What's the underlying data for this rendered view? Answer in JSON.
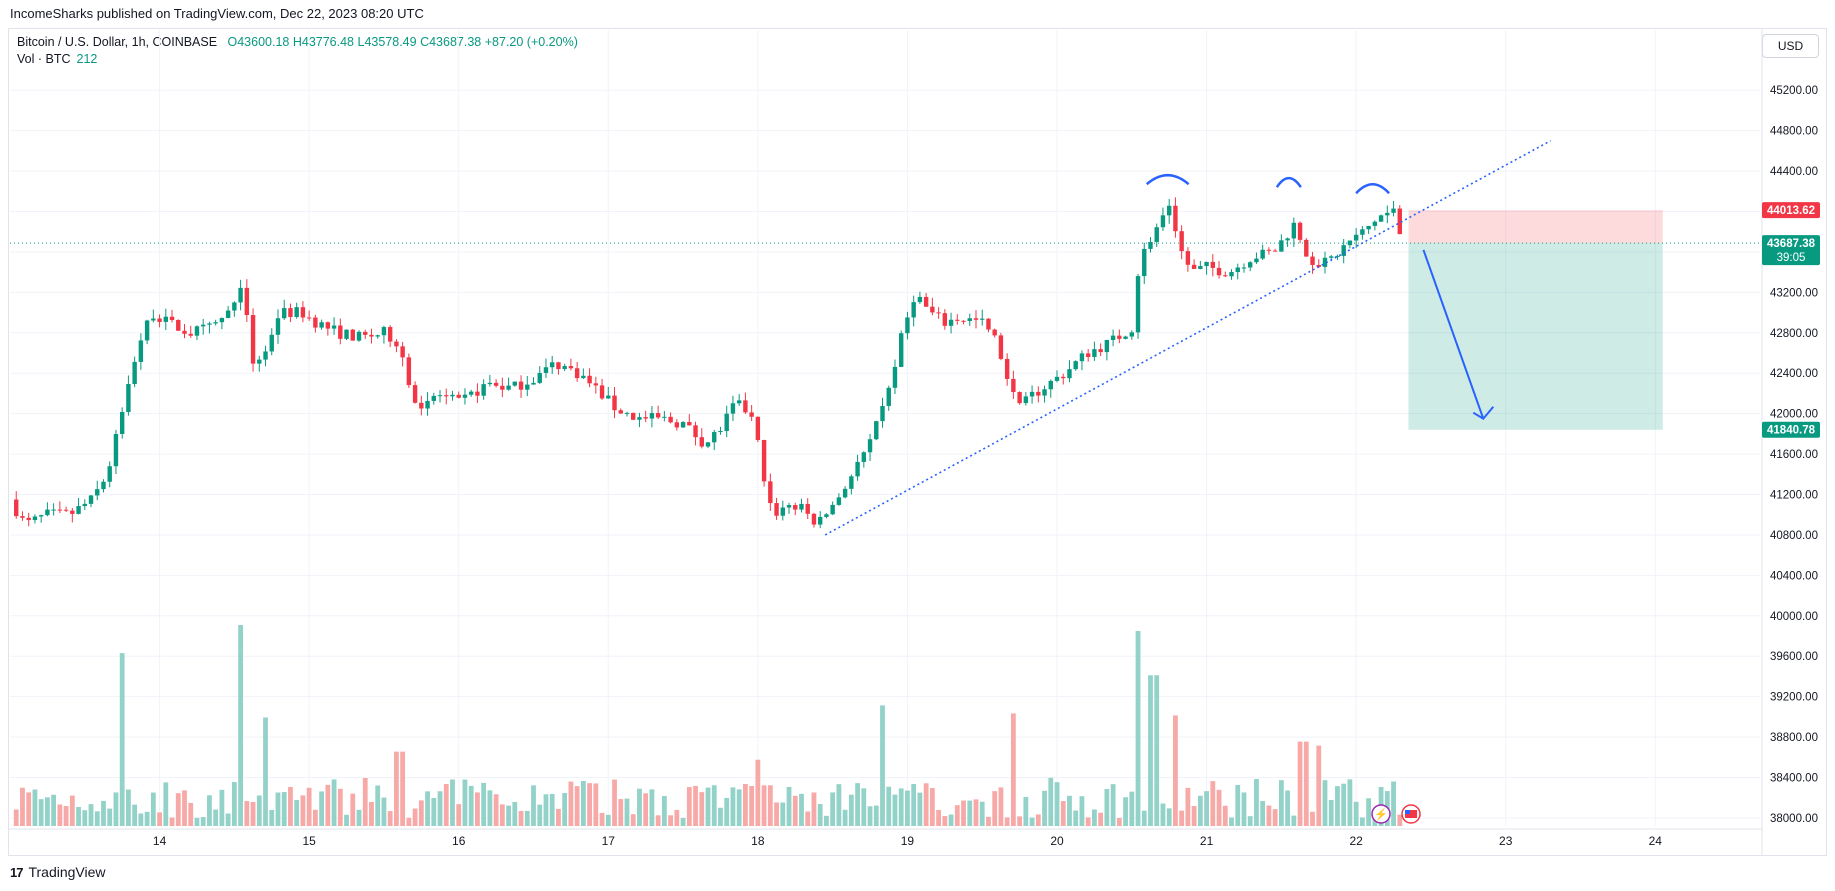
{
  "header": {
    "published": "IncomeSharks published on TradingView.com, Dec 22, 2023 08:20 UTC",
    "currency_button": "USD",
    "brand": "TradingView"
  },
  "legend": {
    "symbol": "Bitcoin / U.S. Dollar, 1h, COINBASE",
    "open": "O43600.18",
    "high": "H43776.48",
    "low": "L43578.49",
    "close": "C43687.38",
    "change": "+87.20 (+0.20%)",
    "vol_label": "Vol · BTC",
    "vol_value": "212"
  },
  "chart_data": {
    "type": "candlestick",
    "title": "Bitcoin / U.S. Dollar, 1h, COINBASE",
    "xlabel": "",
    "ylabel": "",
    "ylim": [
      37950,
      45400
    ],
    "x_ticks": [
      "14",
      "15",
      "16",
      "17",
      "18",
      "19",
      "20",
      "21",
      "22",
      "23",
      "24"
    ],
    "x_tick_days": [
      14,
      15,
      16,
      17,
      18,
      19,
      20,
      21,
      22,
      23,
      24
    ],
    "x_range_days": [
      13.0,
      24.7
    ],
    "y_ticks": [
      "45200.00",
      "44800.00",
      "44400.00",
      "44000.00",
      "43600.00",
      "43200.00",
      "42800.00",
      "42400.00",
      "42000.00",
      "41600.00",
      "41200.00",
      "40800.00",
      "40400.00",
      "40000.00",
      "39600.00",
      "39200.00",
      "38800.00",
      "38400.00",
      "38000.00"
    ],
    "y_tick_values": [
      45200,
      44800,
      44400,
      44000,
      43600,
      43200,
      42800,
      42400,
      42000,
      41600,
      41200,
      40800,
      40400,
      40000,
      39600,
      39200,
      38800,
      38400,
      38000
    ],
    "price_labels": [
      {
        "text": "44013.62",
        "value": 44013.62,
        "color": "#f23645"
      },
      {
        "text": "43687.38",
        "subtext": "39:05",
        "value": 43687.38,
        "color": "#089981"
      },
      {
        "text": "41840.78",
        "value": 41840.78,
        "color": "#089981"
      }
    ],
    "price_path": [
      [
        13.0,
        41150
      ],
      [
        13.1,
        40900
      ],
      [
        13.25,
        41000
      ],
      [
        13.4,
        41000
      ],
      [
        13.55,
        41150
      ],
      [
        13.65,
        41400
      ],
      [
        13.75,
        42000
      ],
      [
        13.85,
        42650
      ],
      [
        13.95,
        43000
      ],
      [
        14.05,
        42900
      ],
      [
        14.2,
        42800
      ],
      [
        14.35,
        42850
      ],
      [
        14.5,
        43050
      ],
      [
        14.55,
        43350
      ],
      [
        14.58,
        43000
      ],
      [
        14.6,
        42500
      ],
      [
        14.7,
        42600
      ],
      [
        14.8,
        43000
      ],
      [
        14.95,
        43000
      ],
      [
        15.05,
        42900
      ],
      [
        15.2,
        42800
      ],
      [
        15.35,
        42750
      ],
      [
        15.5,
        42800
      ],
      [
        15.6,
        42700
      ],
      [
        15.65,
        42400
      ],
      [
        15.75,
        42000
      ],
      [
        15.85,
        42200
      ],
      [
        16.0,
        42100
      ],
      [
        16.2,
        42300
      ],
      [
        16.35,
        42250
      ],
      [
        16.5,
        42350
      ],
      [
        16.65,
        42500
      ],
      [
        16.8,
        42400
      ],
      [
        16.95,
        42200
      ],
      [
        17.05,
        42050
      ],
      [
        17.2,
        41950
      ],
      [
        17.35,
        41950
      ],
      [
        17.5,
        41900
      ],
      [
        17.65,
        41700
      ],
      [
        17.75,
        41850
      ],
      [
        17.85,
        42100
      ],
      [
        17.95,
        42000
      ],
      [
        18.0,
        41700
      ],
      [
        18.05,
        41300
      ],
      [
        18.1,
        41000
      ],
      [
        18.2,
        41100
      ],
      [
        18.3,
        41050
      ],
      [
        18.4,
        40900
      ],
      [
        18.45,
        41000
      ],
      [
        18.55,
        41200
      ],
      [
        18.65,
        41450
      ],
      [
        18.75,
        41700
      ],
      [
        18.85,
        42100
      ],
      [
        18.95,
        42700
      ],
      [
        19.05,
        43200
      ],
      [
        19.15,
        43000
      ],
      [
        19.25,
        42900
      ],
      [
        19.35,
        42950
      ],
      [
        19.5,
        42900
      ],
      [
        19.6,
        42700
      ],
      [
        19.7,
        42200
      ],
      [
        19.75,
        42050
      ],
      [
        19.85,
        42200
      ],
      [
        19.95,
        42300
      ],
      [
        20.05,
        42400
      ],
      [
        20.2,
        42600
      ],
      [
        20.35,
        42700
      ],
      [
        20.5,
        42850
      ],
      [
        20.55,
        43500
      ],
      [
        20.65,
        43800
      ],
      [
        20.75,
        44000
      ],
      [
        20.8,
        43700
      ],
      [
        20.9,
        43400
      ],
      [
        21.0,
        43450
      ],
      [
        21.15,
        43400
      ],
      [
        21.3,
        43550
      ],
      [
        21.45,
        43600
      ],
      [
        21.55,
        43800
      ],
      [
        21.6,
        43900
      ],
      [
        21.65,
        43600
      ],
      [
        21.75,
        43450
      ],
      [
        21.85,
        43550
      ],
      [
        21.95,
        43700
      ],
      [
        22.05,
        43800
      ],
      [
        22.15,
        43950
      ],
      [
        22.25,
        44000
      ],
      [
        22.3,
        43750
      ],
      [
        22.33,
        43687
      ]
    ],
    "volume": {
      "ylim_max": 1000,
      "bars": [
        {
          "x": 13.75,
          "v": 860
        },
        {
          "x": 14.55,
          "v": 1000
        },
        {
          "x": 14.7,
          "v": 540
        },
        {
          "x": 15.6,
          "v": 370
        },
        {
          "x": 18.0,
          "v": 330
        },
        {
          "x": 18.85,
          "v": 600
        },
        {
          "x": 19.7,
          "v": 560
        },
        {
          "x": 20.55,
          "v": 970
        },
        {
          "x": 20.65,
          "v": 750
        },
        {
          "x": 20.8,
          "v": 550
        },
        {
          "x": 21.65,
          "v": 420
        },
        {
          "x": 21.75,
          "v": 400
        }
      ]
    },
    "annotations": {
      "trendline": {
        "from": [
          18.45,
          40800
        ],
        "to": [
          23.3,
          44700
        ],
        "color": "#2962ff",
        "style": "dotted"
      },
      "short_position": {
        "start_day": 22.35,
        "end_day": 24.05,
        "entry": 43687.38,
        "stop": 44013.62,
        "target": 41840.78
      },
      "arrow": {
        "from": [
          22.45,
          43620
        ],
        "to": [
          22.85,
          41950
        ],
        "color": "#2962ff"
      },
      "head_and_shoulders_arcs": [
        {
          "x1": 20.6,
          "x2": 20.88,
          "y": 44330
        },
        {
          "x1": 21.47,
          "x2": 21.63,
          "y": 44300
        },
        {
          "x1": 22.0,
          "x2": 22.22,
          "y": 44240
        }
      ]
    }
  },
  "colors": {
    "up": "#089981",
    "down": "#f23645",
    "up_volume": "#93d2c8",
    "down_volume": "#f7a9a7",
    "grid": "#f0f3fa",
    "tradingview_icon": "lightning-badge-icon",
    "flag_icon": "us-flag-icon"
  }
}
